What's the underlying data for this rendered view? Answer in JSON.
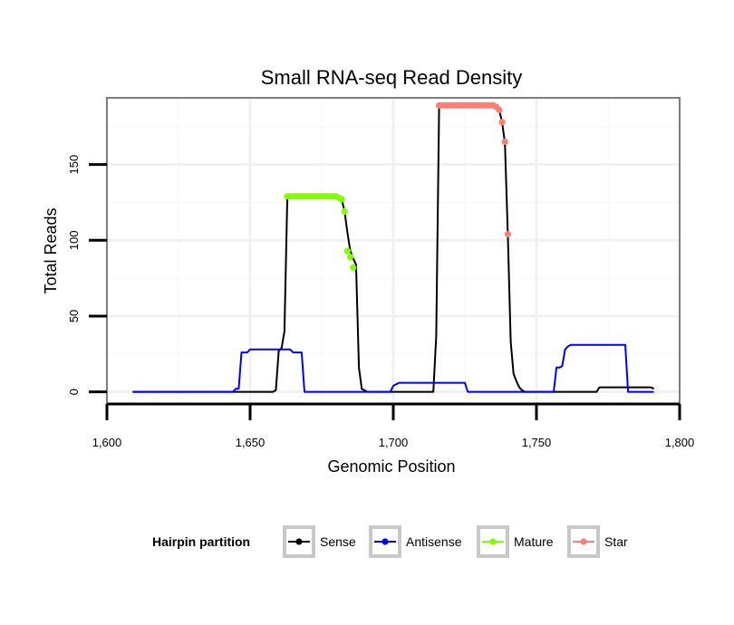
{
  "chart_data": {
    "type": "line",
    "title": "Small RNA-seq Read Density",
    "xlabel": "Genomic Position",
    "ylabel": "Total Reads",
    "xlim": [
      1600,
      1800
    ],
    "ylim": [
      -8,
      194
    ],
    "x_ticks": [
      1600,
      1650,
      1700,
      1750,
      1800
    ],
    "x_tick_labels": [
      "1,600",
      "1,650",
      "1,700",
      "1,750",
      "1,800"
    ],
    "y_ticks": [
      0,
      50,
      100,
      150
    ],
    "y_tick_labels": [
      "0",
      "50",
      "100",
      "150"
    ],
    "grid": true,
    "legend": {
      "title": "Hairpin partition",
      "position": "bottom",
      "entries": [
        "Sense",
        "Antisense",
        "Mature",
        "Star"
      ]
    },
    "colors": {
      "Sense": "#000000",
      "Antisense": "#0000ff",
      "Mature": "#7fff00",
      "Star": "#fa8072"
    },
    "series": [
      {
        "name": "Sense",
        "kind": "line",
        "points": [
          [
            1609,
            0
          ],
          [
            1658,
            0
          ],
          [
            1659,
            1
          ],
          [
            1660,
            27
          ],
          [
            1661,
            29
          ],
          [
            1662,
            40
          ],
          [
            1663,
            129
          ],
          [
            1681,
            129
          ],
          [
            1682,
            127
          ],
          [
            1683,
            119
          ],
          [
            1684,
            105
          ],
          [
            1685,
            93
          ],
          [
            1686,
            88
          ],
          [
            1687,
            84
          ],
          [
            1688,
            16
          ],
          [
            1689,
            2
          ],
          [
            1690,
            1
          ],
          [
            1691,
            0
          ],
          [
            1714,
            0
          ],
          [
            1715,
            37
          ],
          [
            1716,
            189
          ],
          [
            1736,
            189
          ],
          [
            1737,
            186
          ],
          [
            1738,
            178
          ],
          [
            1739,
            164
          ],
          [
            1740,
            104
          ],
          [
            1741,
            33
          ],
          [
            1742,
            12
          ],
          [
            1743,
            7
          ],
          [
            1744,
            3
          ],
          [
            1745,
            1
          ],
          [
            1746,
            0
          ],
          [
            1771,
            0
          ],
          [
            1772,
            3
          ],
          [
            1790,
            3
          ],
          [
            1791,
            2
          ]
        ]
      },
      {
        "name": "Antisense",
        "kind": "line",
        "points": [
          [
            1609,
            0
          ],
          [
            1644,
            0
          ],
          [
            1645,
            2
          ],
          [
            1646,
            2
          ],
          [
            1647,
            26
          ],
          [
            1649,
            26
          ],
          [
            1650,
            28
          ],
          [
            1664,
            28
          ],
          [
            1665,
            26
          ],
          [
            1668,
            26
          ],
          [
            1669,
            0
          ],
          [
            1699,
            0
          ],
          [
            1700,
            4
          ],
          [
            1701,
            5
          ],
          [
            1702,
            6
          ],
          [
            1725,
            6
          ],
          [
            1726,
            0
          ],
          [
            1756,
            0
          ],
          [
            1757,
            16
          ],
          [
            1758,
            16
          ],
          [
            1759,
            17
          ],
          [
            1760,
            28
          ],
          [
            1761,
            30
          ],
          [
            1762,
            31
          ],
          [
            1781,
            31
          ],
          [
            1782,
            0
          ],
          [
            1791,
            0
          ]
        ]
      },
      {
        "name": "Mature",
        "kind": "points",
        "points": [
          [
            1663,
            129
          ],
          [
            1664,
            129
          ],
          [
            1665,
            129
          ],
          [
            1666,
            129
          ],
          [
            1667,
            129
          ],
          [
            1668,
            129
          ],
          [
            1669,
            129
          ],
          [
            1670,
            129
          ],
          [
            1671,
            129
          ],
          [
            1672,
            129
          ],
          [
            1673,
            129
          ],
          [
            1674,
            129
          ],
          [
            1675,
            129
          ],
          [
            1676,
            129
          ],
          [
            1677,
            129
          ],
          [
            1678,
            129
          ],
          [
            1679,
            129
          ],
          [
            1680,
            129
          ],
          [
            1681,
            128
          ],
          [
            1682,
            127
          ],
          [
            1683,
            119
          ],
          [
            1684,
            93
          ],
          [
            1685,
            89
          ],
          [
            1686,
            82
          ]
        ]
      },
      {
        "name": "Star",
        "kind": "points",
        "points": [
          [
            1716,
            189
          ],
          [
            1717,
            189
          ],
          [
            1718,
            189
          ],
          [
            1719,
            189
          ],
          [
            1720,
            189
          ],
          [
            1721,
            189
          ],
          [
            1722,
            189
          ],
          [
            1723,
            189
          ],
          [
            1724,
            189
          ],
          [
            1725,
            189
          ],
          [
            1726,
            189
          ],
          [
            1727,
            189
          ],
          [
            1728,
            189
          ],
          [
            1729,
            189
          ],
          [
            1730,
            189
          ],
          [
            1731,
            189
          ],
          [
            1732,
            189
          ],
          [
            1733,
            189
          ],
          [
            1734,
            189
          ],
          [
            1735,
            189
          ],
          [
            1736,
            188
          ],
          [
            1737,
            186
          ],
          [
            1738,
            178
          ],
          [
            1739,
            165
          ],
          [
            1740,
            104
          ]
        ]
      }
    ]
  }
}
